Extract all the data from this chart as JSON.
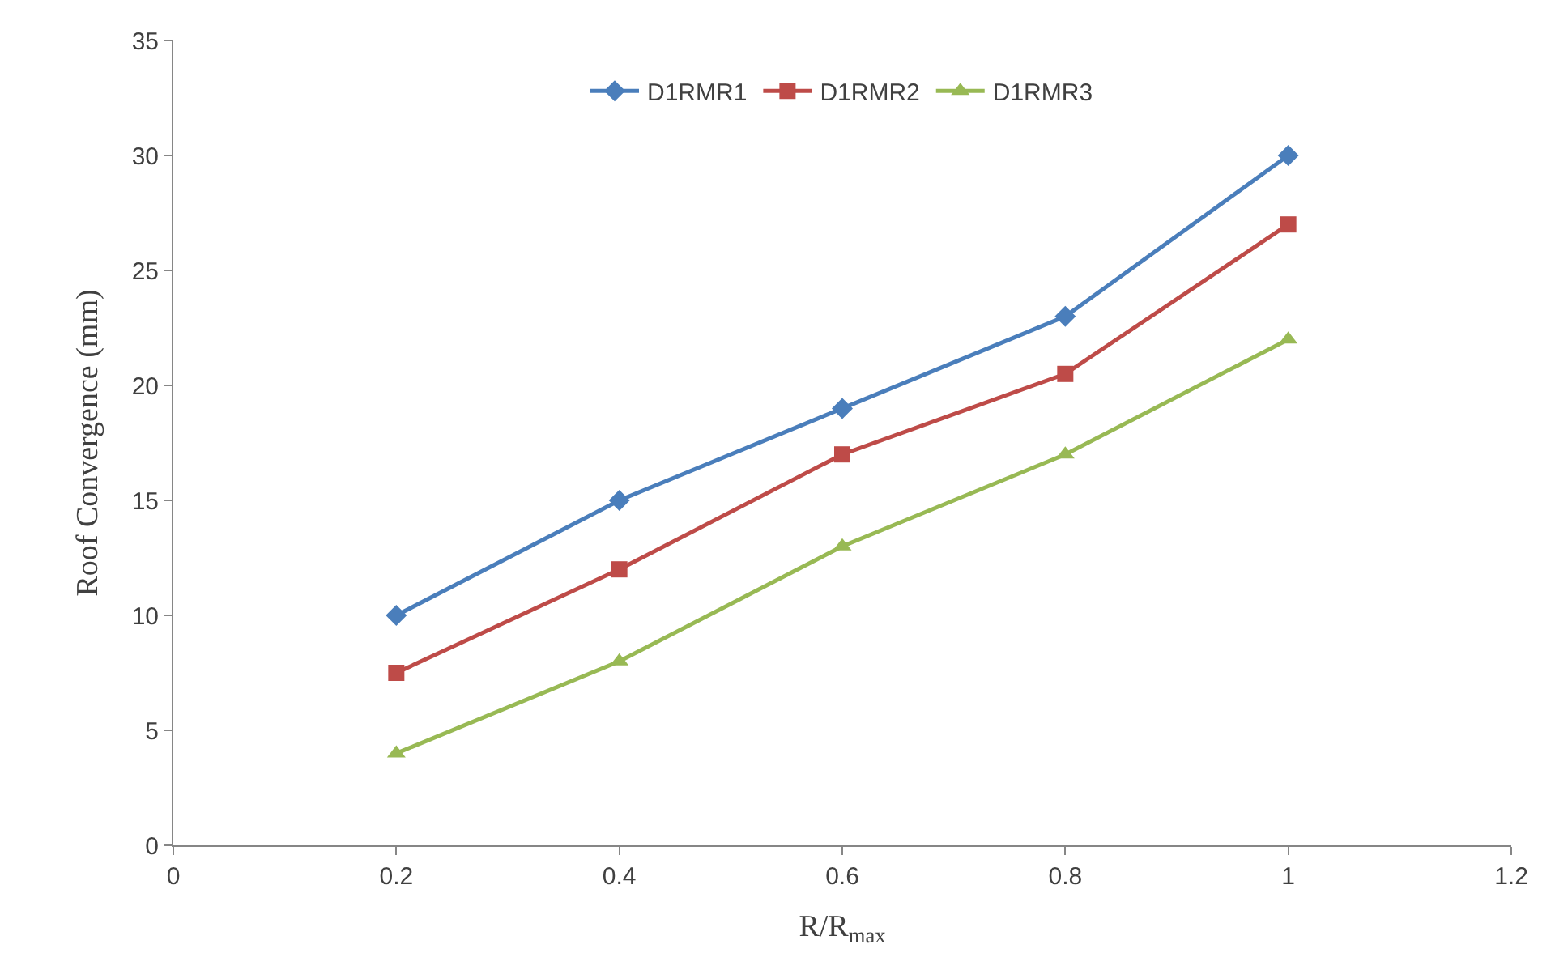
{
  "chart_data": {
    "type": "line",
    "xlabel": "R/R$_{max}$",
    "ylabel": "Roof Convergence (mm)",
    "x": [
      0.2,
      0.4,
      0.6,
      0.8,
      1.0
    ],
    "series": [
      {
        "name": "D1RMR1",
        "color": "#4a7ebb",
        "marker": "diamond",
        "values": [
          10,
          15,
          19,
          23,
          30
        ]
      },
      {
        "name": "D1RMR2",
        "color": "#be4b48",
        "marker": "square",
        "values": [
          7.5,
          12,
          17,
          20.5,
          27
        ]
      },
      {
        "name": "D1RMR3",
        "color": "#98b954",
        "marker": "triangle",
        "values": [
          4,
          8,
          13,
          17,
          22
        ]
      }
    ],
    "xlim": [
      0,
      1.2
    ],
    "xticks": [
      0,
      0.2,
      0.4,
      0.6,
      0.8,
      1,
      1.2
    ],
    "ylim": [
      0,
      35
    ],
    "yticks": [
      0,
      5,
      10,
      15,
      20,
      25,
      30,
      35
    ],
    "legend": "top",
    "line_style": "solid"
  }
}
